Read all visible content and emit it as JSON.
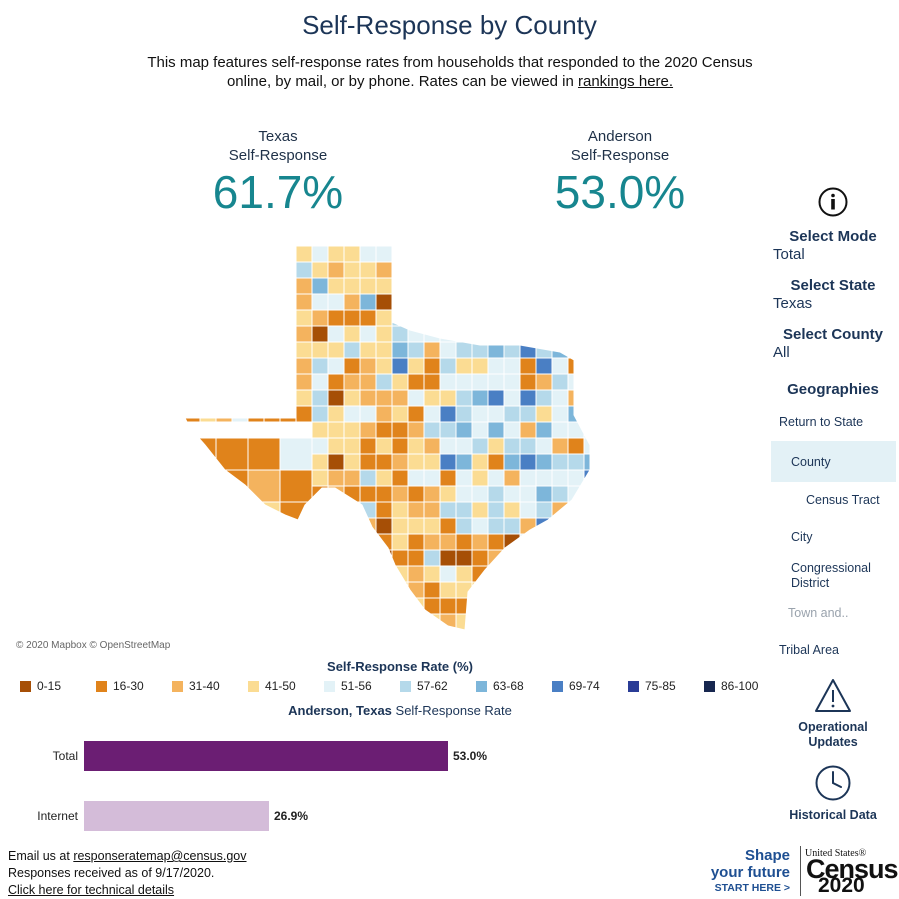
{
  "header": {
    "title": "Self-Response by County",
    "subtitle": "This map features self-response rates from households that responded to the 2020 Census online, by mail, or by phone. Rates can be viewed in ",
    "subtitle_link": "rankings here."
  },
  "kpis": {
    "state": {
      "line1": "Texas",
      "line2": "Self-Response",
      "value": "61.7%"
    },
    "county": {
      "line1": "Anderson",
      "line2": "Self-Response",
      "value": "53.0%"
    }
  },
  "map": {
    "attribution": "© 2020 Mapbox © OpenStreetMap"
  },
  "legend": {
    "title": "Self-Response Rate (%)",
    "items": [
      {
        "label": "0-15",
        "color": "#a64f06"
      },
      {
        "label": "16-30",
        "color": "#e0831b"
      },
      {
        "label": "31-40",
        "color": "#f4b35e"
      },
      {
        "label": "41-50",
        "color": "#fbdc93"
      },
      {
        "label": "51-56",
        "color": "#e3f2f7"
      },
      {
        "label": "57-62",
        "color": "#b5d9ea"
      },
      {
        "label": "63-68",
        "color": "#7db6da"
      },
      {
        "label": "69-74",
        "color": "#4a7fc4"
      },
      {
        "label": "75-85",
        "color": "#2a3c96"
      },
      {
        "label": "86-100",
        "color": "#17274f"
      }
    ]
  },
  "bar_chart": {
    "title_bold": "Anderson, Texas",
    "title_rest": " Self-Response Rate",
    "bars": [
      {
        "label": "Total",
        "value": 53.0,
        "display": "53.0%",
        "color": "#6b1e73"
      },
      {
        "label": "Internet",
        "value": 26.9,
        "display": "26.9%",
        "color": "#d4bcd9"
      }
    ]
  },
  "footer": {
    "email_prefix": "Email us at ",
    "email": "responseratemap@census.gov",
    "received": "Responses received as of 9/17/2020.",
    "tech_link": "Click here for technical details"
  },
  "panel": {
    "info_icon": "info-icon",
    "mode_label": "Select Mode",
    "mode_value": "Total",
    "state_label": "Select State",
    "state_value": "Texas",
    "county_label": "Select County",
    "county_value": "All",
    "geographies_label": "Geographies",
    "geo_items": [
      "Return to State",
      "County",
      "Census Tract",
      "City",
      "Congressional District",
      "Town and..",
      "Tribal Area"
    ],
    "geo_selected": "County",
    "operational_label": "Operational Updates",
    "historical_label": "Historical Data"
  },
  "branding": {
    "shape_line1": "Shape",
    "shape_line2": "your future",
    "cta": "START HERE >",
    "us_label": "United States®",
    "census_word": "Census",
    "census_year": "2020"
  }
}
